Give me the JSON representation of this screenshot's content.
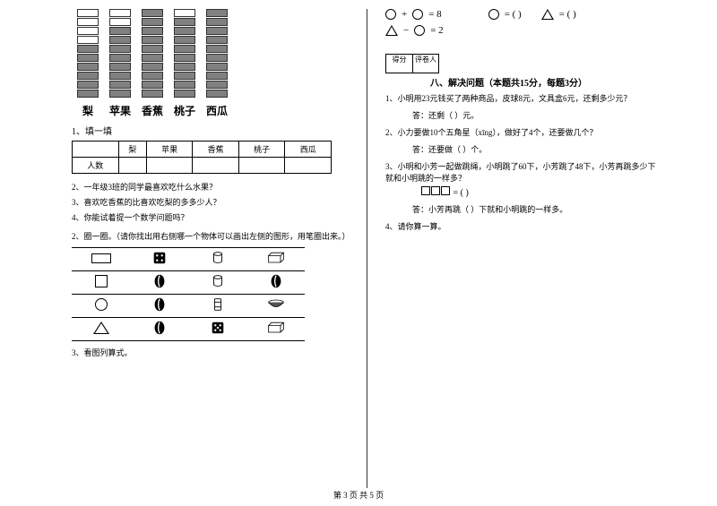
{
  "chart": {
    "max_cells": 10,
    "bars": [
      {
        "label": "梨",
        "filled": 6
      },
      {
        "label": "苹果",
        "filled": 8
      },
      {
        "label": "香蕉",
        "filled": 10
      },
      {
        "label": "桃子",
        "filled": 9
      },
      {
        "label": "西瓜",
        "filled": 10
      }
    ],
    "row_label": "人数"
  },
  "left": {
    "q1": "1、填一填",
    "sub2": "2、一年级3班的同学最喜欢吃什么水果？",
    "sub3": "3、喜欢吃香蕉的比喜欢吃梨的多多少人？",
    "sub4": "4、你能试着提一个数学问题吗？",
    "q2": "2、圈一圈。（请你找出用右侧哪一个物体可以画出左侧的图形，用笔圈出来。）",
    "q3": "3、看图列算式。"
  },
  "right": {
    "eq1_rhs": "= 8",
    "eq2_rhs": "= 2",
    "solve_circ": "= (       )",
    "solve_tri": "= (       )",
    "score_a": "得分",
    "score_b": "评卷人",
    "section": "八、解决问题（本题共15分，每题3分）",
    "p1": "1、小明用23元钱买了两种商品，皮球8元，文具盒6元，还剩多少元？",
    "a1": "答：还剩（    ）元。",
    "p2": "2、小力要做10个五角星（xīng），做好了4个，还要做几个？",
    "a2": "答：还要做（    ）个。",
    "p3": "3、小明和小芳一起做跳绳，小明跳了60下，小芳跳了48下，小芳再跳多少下就和小明跳的一样多？",
    "box_suffix": "= (      )",
    "a3": "答：小芳再跳（    ）下就和小明跳的一样多。",
    "p4": "4、请你算一算。"
  },
  "footer": "第 3 页  共 5 页"
}
